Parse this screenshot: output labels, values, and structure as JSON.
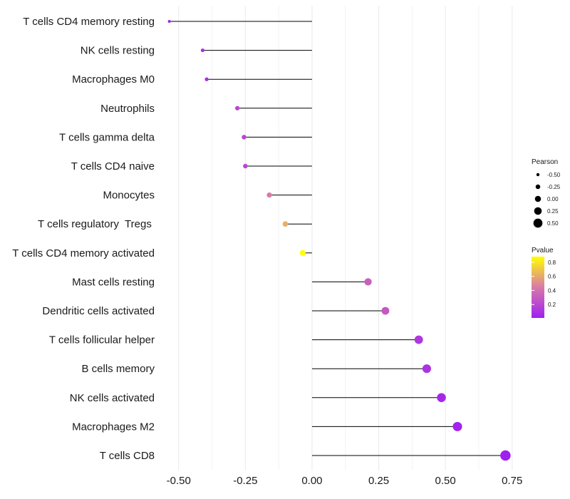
{
  "chart_data": {
    "type": "lollipop",
    "title": "",
    "xlabel": "",
    "ylabel": "",
    "xlim": [
      -0.55,
      0.78
    ],
    "x_ticks": [
      -0.5,
      -0.25,
      0.0,
      0.25,
      0.5,
      0.75
    ],
    "x_tick_labels": [
      "-0.50",
      "-0.25",
      "0.00",
      "0.25",
      "0.50",
      "0.75"
    ],
    "baseline": 0,
    "categories": [
      "T cells CD4 memory resting",
      "NK cells resting",
      "Macrophages M0",
      "Neutrophils",
      "T cells gamma delta",
      "T cells CD4 naive",
      "Monocytes",
      "T cells regulatory  Tregs ",
      "T cells CD4 memory activated",
      "Mast cells resting",
      "Dendritic cells activated",
      "T cells follicular helper",
      "B cells memory",
      "NK cells activated",
      "Macrophages M2",
      "T cells CD8"
    ],
    "pearson": [
      -0.535,
      -0.41,
      -0.395,
      -0.28,
      -0.255,
      -0.25,
      -0.16,
      -0.1,
      -0.035,
      0.21,
      0.275,
      0.4,
      0.43,
      0.485,
      0.545,
      0.725
    ],
    "pvalue": [
      0.02,
      0.08,
      0.08,
      0.2,
      0.2,
      0.2,
      0.45,
      0.62,
      0.88,
      0.32,
      0.28,
      0.12,
      0.1,
      0.05,
      0.03,
      0.01
    ],
    "size_legend": {
      "title": "Pearson",
      "values": [
        -0.5,
        -0.25,
        0.0,
        0.25,
        0.5
      ],
      "labels": [
        "-0.50",
        "-0.25",
        "0.00",
        "0.25",
        "0.50"
      ]
    },
    "color_legend": {
      "title": "Pvalue",
      "range": [
        0.01,
        0.88
      ],
      "ticks": [
        0.8,
        0.6,
        0.4,
        0.2
      ],
      "tick_labels": [
        "0.8",
        "0.6",
        "0.4",
        "0.2"
      ],
      "low_color": "#a020f0",
      "mid_color": "#d87aa8",
      "high_color": "#ffff00"
    },
    "grid": true,
    "grid_color": "#ebebeb",
    "segment_color": "#000000"
  }
}
